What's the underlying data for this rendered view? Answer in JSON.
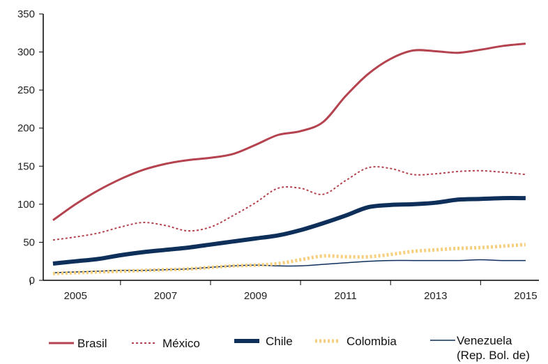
{
  "chart_data": {
    "type": "line",
    "title": "",
    "xlabel": "",
    "ylabel": "",
    "ylim": [
      0,
      350
    ],
    "xlim": [
      2004.5,
      2015.1
    ],
    "y_ticks": [
      0,
      50,
      100,
      150,
      200,
      250,
      300,
      350
    ],
    "x_ticks": [
      2005,
      2007,
      2009,
      2011,
      2013,
      2015
    ],
    "x_tick_labels": [
      "2005",
      "2007",
      "2009",
      "2011",
      "2013",
      "2015"
    ],
    "grid": false,
    "legend_position": "bottom",
    "series": [
      {
        "name": "Brasil",
        "color": "#b5434f",
        "style": "solid",
        "points": [
          [
            2004.5,
            79
          ],
          [
            2005,
            100
          ],
          [
            2005.5,
            118
          ],
          [
            2006,
            133
          ],
          [
            2006.5,
            145
          ],
          [
            2007,
            153
          ],
          [
            2007.5,
            158
          ],
          [
            2008,
            161
          ],
          [
            2008.5,
            166
          ],
          [
            2009,
            178
          ],
          [
            2009.5,
            191
          ],
          [
            2010,
            196
          ],
          [
            2010.5,
            208
          ],
          [
            2011,
            242
          ],
          [
            2011.5,
            271
          ],
          [
            2012,
            291
          ],
          [
            2012.5,
            302
          ],
          [
            2013,
            301
          ],
          [
            2013.5,
            299
          ],
          [
            2014,
            303
          ],
          [
            2014.5,
            308
          ],
          [
            2015,
            311
          ]
        ]
      },
      {
        "name": "México",
        "color": "#b5434f",
        "style": "dotted",
        "points": [
          [
            2004.5,
            53
          ],
          [
            2005,
            57
          ],
          [
            2005.5,
            62
          ],
          [
            2006,
            70
          ],
          [
            2006.5,
            76
          ],
          [
            2007,
            72
          ],
          [
            2007.5,
            65
          ],
          [
            2008,
            70
          ],
          [
            2008.5,
            85
          ],
          [
            2009,
            102
          ],
          [
            2009.5,
            121
          ],
          [
            2010,
            121
          ],
          [
            2010.5,
            113
          ],
          [
            2011,
            131
          ],
          [
            2011.5,
            148
          ],
          [
            2012,
            147
          ],
          [
            2012.5,
            139
          ],
          [
            2013,
            140
          ],
          [
            2013.5,
            143
          ],
          [
            2014,
            144
          ],
          [
            2014.5,
            142
          ],
          [
            2015,
            139
          ]
        ]
      },
      {
        "name": "Chile",
        "color": "#0d2f5a",
        "style": "thick",
        "points": [
          [
            2004.5,
            22
          ],
          [
            2005,
            25
          ],
          [
            2005.5,
            28
          ],
          [
            2006,
            33
          ],
          [
            2006.5,
            37
          ],
          [
            2007,
            40
          ],
          [
            2007.5,
            43
          ],
          [
            2008,
            47
          ],
          [
            2008.5,
            51
          ],
          [
            2009,
            55
          ],
          [
            2009.5,
            59
          ],
          [
            2010,
            66
          ],
          [
            2010.5,
            75
          ],
          [
            2011,
            85
          ],
          [
            2011.5,
            96
          ],
          [
            2012,
            99
          ],
          [
            2012.5,
            100
          ],
          [
            2013,
            102
          ],
          [
            2013.5,
            106
          ],
          [
            2014,
            107
          ],
          [
            2014.5,
            108
          ],
          [
            2015,
            108
          ]
        ]
      },
      {
        "name": "Colombia",
        "color": "#f6cf7e",
        "style": "dotted-thick",
        "points": [
          [
            2004.5,
            9
          ],
          [
            2005,
            10
          ],
          [
            2005.5,
            11
          ],
          [
            2006,
            12
          ],
          [
            2006.5,
            13
          ],
          [
            2007,
            14
          ],
          [
            2007.5,
            15
          ],
          [
            2008,
            17
          ],
          [
            2008.5,
            19
          ],
          [
            2009,
            20
          ],
          [
            2009.5,
            22
          ],
          [
            2010,
            27
          ],
          [
            2010.5,
            32
          ],
          [
            2011,
            31
          ],
          [
            2011.5,
            31
          ],
          [
            2012,
            34
          ],
          [
            2012.5,
            38
          ],
          [
            2013,
            40
          ],
          [
            2013.5,
            42
          ],
          [
            2014,
            43
          ],
          [
            2014.5,
            45
          ],
          [
            2015,
            47
          ]
        ]
      },
      {
        "name": "Venezuela\n(Rep. Bol. de)",
        "color": "#0d2f5a",
        "style": "thin",
        "points": [
          [
            2004.5,
            10
          ],
          [
            2005,
            11
          ],
          [
            2005.5,
            12
          ],
          [
            2006,
            13
          ],
          [
            2006.5,
            13
          ],
          [
            2007,
            14
          ],
          [
            2007.5,
            15
          ],
          [
            2008,
            17
          ],
          [
            2008.5,
            19
          ],
          [
            2009,
            20
          ],
          [
            2009.5,
            19
          ],
          [
            2010,
            19
          ],
          [
            2010.5,
            21
          ],
          [
            2011,
            23
          ],
          [
            2011.5,
            25
          ],
          [
            2012,
            26
          ],
          [
            2012.5,
            26
          ],
          [
            2013,
            26
          ],
          [
            2013.5,
            26
          ],
          [
            2014,
            27
          ],
          [
            2014.5,
            26
          ],
          [
            2015,
            26
          ]
        ]
      }
    ]
  },
  "legend": {
    "items": [
      {
        "label": "Brasil"
      },
      {
        "label": "México"
      },
      {
        "label": "Chile"
      },
      {
        "label": "Colombia"
      },
      {
        "label_line1": "Venezuela",
        "label_line2": "(Rep. Bol. de)"
      }
    ]
  }
}
